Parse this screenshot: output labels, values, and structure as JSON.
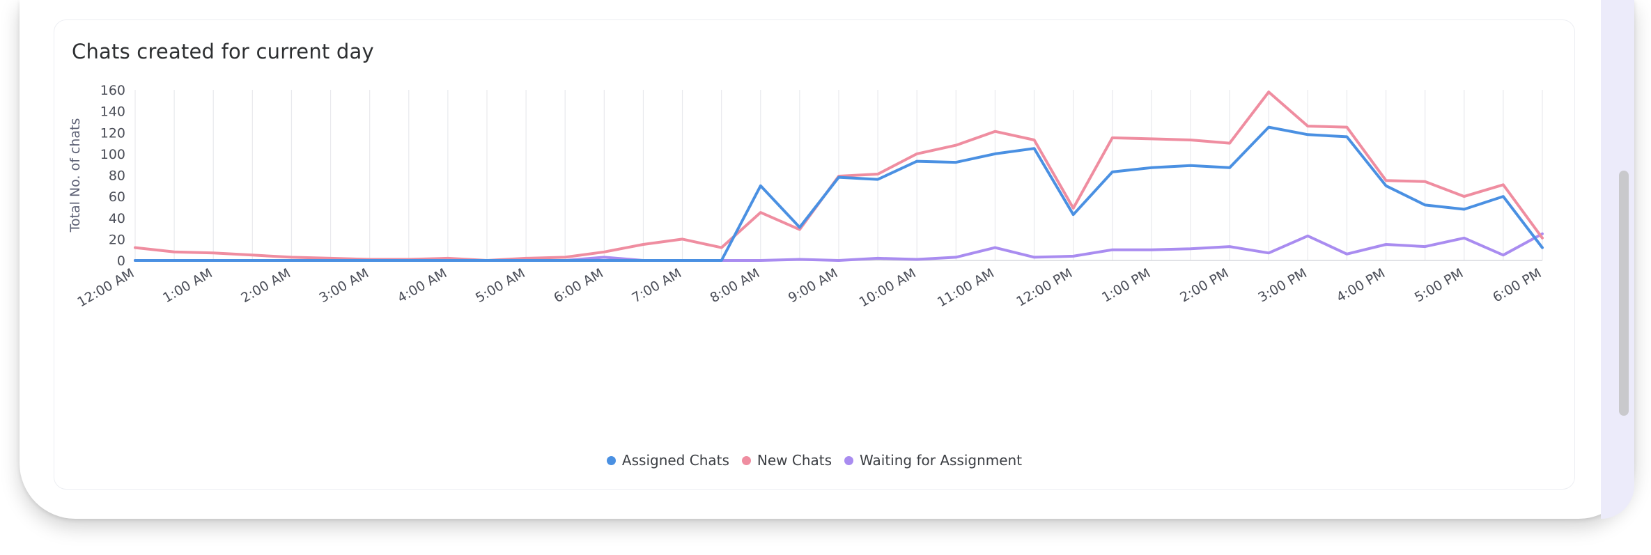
{
  "card": {
    "title": "Chats created for current day"
  },
  "chart_data": {
    "type": "line",
    "title": "Chats created for current day",
    "ylabel": "Total No. of chats",
    "xlabel": "",
    "ylim": [
      0,
      160
    ],
    "yticks": [
      0,
      20,
      40,
      60,
      80,
      100,
      120,
      140,
      160
    ],
    "x_labels": [
      "12:00 AM",
      "1:00 AM",
      "2:00 AM",
      "3:00 AM",
      "4:00 AM",
      "5:00 AM",
      "6:00 AM",
      "7:00 AM",
      "8:00 AM",
      "9:00 AM",
      "10:00 AM",
      "11:00 AM",
      "12:00 PM",
      "1:00 PM",
      "2:00 PM",
      "3:00 PM",
      "4:00 PM",
      "5:00 PM",
      "6:00 PM"
    ],
    "x_points": 37,
    "grid": "vertical",
    "legend_position": "bottom-center",
    "series": [
      {
        "name": "Assigned Chats",
        "color": "#4a90e2",
        "values": [
          0,
          0,
          0,
          0,
          0,
          0,
          0,
          0,
          0,
          0,
          0,
          0,
          0,
          0,
          0,
          0,
          70,
          31,
          78,
          76,
          93,
          92,
          100,
          105,
          43,
          83,
          87,
          89,
          87,
          125,
          118,
          116,
          70,
          52,
          48,
          60,
          12
        ]
      },
      {
        "name": "New Chats",
        "color": "#ef8da0",
        "values": [
          12,
          8,
          7,
          5,
          3,
          2,
          1,
          1,
          2,
          0,
          2,
          3,
          8,
          15,
          20,
          12,
          45,
          29,
          79,
          81,
          100,
          108,
          121,
          113,
          49,
          115,
          114,
          113,
          110,
          158,
          126,
          125,
          75,
          74,
          60,
          71,
          21
        ]
      },
      {
        "name": "Waiting for Assignment",
        "color": "#a98cf0",
        "values": [
          0,
          0,
          0,
          0,
          0,
          0,
          0,
          0,
          0,
          0,
          0,
          0,
          3,
          0,
          0,
          0,
          0,
          1,
          0,
          2,
          1,
          3,
          12,
          3,
          4,
          10,
          10,
          11,
          13,
          7,
          23,
          6,
          15,
          13,
          21,
          5,
          25
        ]
      }
    ]
  }
}
